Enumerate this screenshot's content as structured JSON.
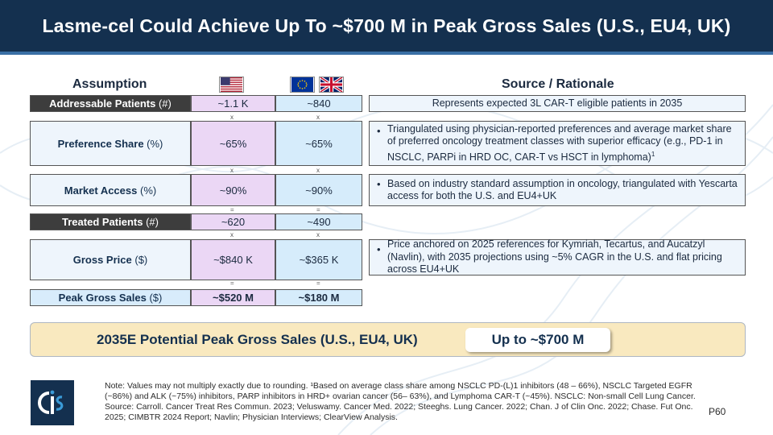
{
  "title": "Lasme-cel Could Achieve Up To ~$700 M in Peak Gross Sales (U.S., EU4, UK)",
  "headers": {
    "assumption": "Assumption",
    "source": "Source / Rationale"
  },
  "flags": {
    "us": "us-flag-icon",
    "eu": "eu-flag-icon",
    "uk": "uk-flag-icon"
  },
  "rows": [
    {
      "label": "Addressable Patients",
      "unit": "(#)",
      "us": "~1.1 K",
      "eu": "~840",
      "source": "Represents expected 3L CAR-T eligible patients in 2035",
      "op": "x"
    },
    {
      "label": "Preference Share",
      "unit": "(%)",
      "us": "~65%",
      "eu": "~65%",
      "source": "Triangulated using physician-reported preferences and average market share of preferred oncology treatment classes with superior efficacy (e.g., PD-1 in NSCLC, PARPi in HRD OC, CAR-T vs HSCT in lymphoma)",
      "source_sup": "1",
      "op": "x"
    },
    {
      "label": "Market Access",
      "unit": "(%)",
      "us": "~90%",
      "eu": "~90%",
      "source": "Based on industry standard assumption in oncology, triangulated with Yescarta access for both the U.S. and EU4+UK",
      "op": "="
    },
    {
      "label": "Treated Patients",
      "unit": "(#)",
      "us": "~620",
      "eu": "~490",
      "op": "x"
    },
    {
      "label": "Gross Price",
      "unit": "($)",
      "us": "~$840 K",
      "eu": "~$365 K",
      "source": "Price anchored on 2025 references for Kymriah, Tecartus, and Aucatzyl (Navlin), with 2035 projections using ~5% CAGR in the U.S. and flat pricing across EU4+UK",
      "op": "="
    },
    {
      "label": "Peak Gross Sales",
      "unit": "($)",
      "us": "~$520 M",
      "eu": "~$180 M"
    }
  ],
  "summary": {
    "label": "2035E Potential Peak Gross Sales (U.S., EU4, UK)",
    "value": "Up to ~$700 M"
  },
  "note": "Note: Values may not multiply exactly due to rounding. ¹Based on average class share among NSCLC PD-(L)1 inhibitors (48 – 66%), NSCLC Targeted EGFR (~86%) and ALK (~75%) inhibitors, PARP inhibitors in HRD+ ovarian cancer (56– 63%), and Lymphoma CAR-T (~45%). NSCLC: Non-small Cell Lung Cancer. Source: Carroll. Cancer Treat Res Commun. 2023; Veluswamy. Cancer Med. 2022; Steeghs. Lung Cancer. 2022; Chan. J of Clin Onc. 2022; Chase. Fut Onc. 2025; CIMBTR 2024 Report; Navlin; Physician Interviews; ClearView Analysis.",
  "page": "P60",
  "logo": "cis-logo",
  "colors": {
    "navy": "#14304f",
    "us_cell": "#ebd7f5",
    "eu_cell": "#d6ecfb",
    "summary_bg": "#f9e9bf"
  }
}
